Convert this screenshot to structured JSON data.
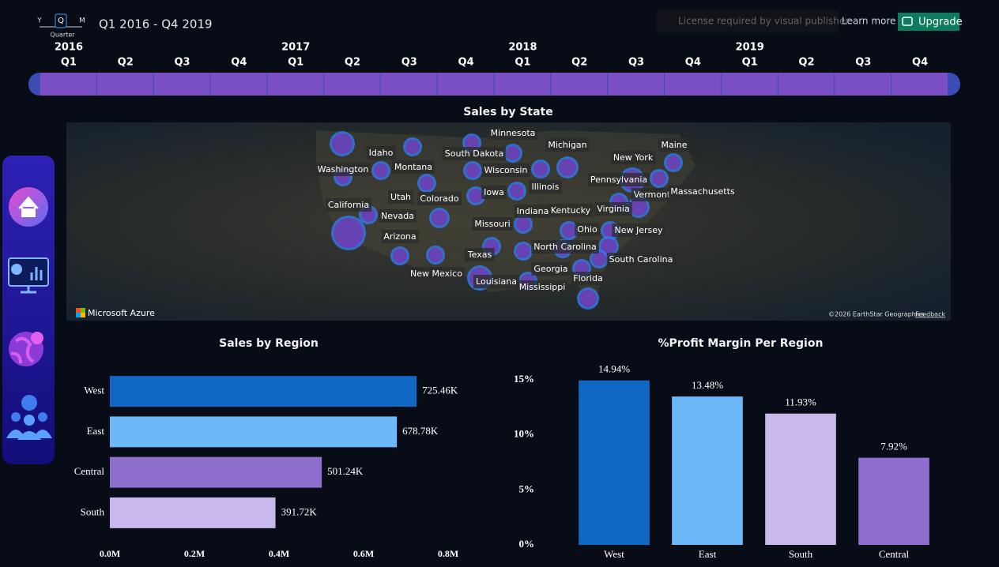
{
  "license": {
    "message": "License required by visual publisher.",
    "link": "Learn more",
    "button": "Upgrade"
  },
  "timeline": {
    "granularity": [
      "Y",
      "Q",
      "M"
    ],
    "granularity_label": "Quarter",
    "range": "Q1 2016 - Q4 2019",
    "years": [
      "2016",
      "2017",
      "2018",
      "2019"
    ],
    "quarters": [
      "Q1",
      "Q2",
      "Q3",
      "Q4",
      "Q1",
      "Q2",
      "Q3",
      "Q4",
      "Q1",
      "Q2",
      "Q3",
      "Q4",
      "Q1",
      "Q2",
      "Q3",
      "Q4"
    ]
  },
  "map": {
    "title": "Sales by State",
    "attribution": "Microsoft Azure",
    "copyright": "©2026 EarthStar Geographics",
    "feedback": "Feedback",
    "labels": [
      "Minnesota",
      "Michigan",
      "Idaho",
      "South Dakota",
      "Maine",
      "New York",
      "Washington",
      "Montana",
      "Wisconsin",
      "Pennsylvania",
      "Illinois",
      "Vermont",
      "Massachusetts",
      "Utah",
      "Iowa",
      "Colorado",
      "California",
      "Nevada",
      "Indiana",
      "Kentucky",
      "Virginia",
      "Missouri",
      "Ohio",
      "New Jersey",
      "Arizona",
      "North Carolina",
      "Texas",
      "South Carolina",
      "New Mexico",
      "Georgia",
      "Florida",
      "Louisiana",
      "Mississippi"
    ]
  },
  "chart_data": [
    {
      "type": "bar",
      "orientation": "horizontal",
      "title": "Sales by Region",
      "categories": [
        "West",
        "East",
        "Central",
        "South"
      ],
      "values": [
        725460,
        678780,
        501240,
        391720
      ],
      "value_labels": [
        "725.46K",
        "678.78K",
        "501.24K",
        "391.72K"
      ],
      "colors": [
        "#1167c4",
        "#6cb8f9",
        "#8e6fcd",
        "#c9b8ec"
      ],
      "xlim": [
        0,
        800000
      ],
      "xticks": [
        {
          "value": 0,
          "label": "0.0M"
        },
        {
          "value": 200000,
          "label": "0.2M"
        },
        {
          "value": 400000,
          "label": "0.4M"
        },
        {
          "value": 600000,
          "label": "0.6M"
        },
        {
          "value": 800000,
          "label": "0.8M"
        }
      ]
    },
    {
      "type": "bar",
      "orientation": "vertical",
      "title": "%Profit Margin Per Region",
      "categories": [
        "West",
        "East",
        "South",
        "Central"
      ],
      "values": [
        14.94,
        13.48,
        11.93,
        7.92
      ],
      "value_labels": [
        "14.94%",
        "13.48%",
        "11.93%",
        "7.92%"
      ],
      "colors": [
        "#1167c4",
        "#6cb8f9",
        "#c9b8ec",
        "#8e6fcd"
      ],
      "ylim": [
        0,
        16.5
      ],
      "yticks": [
        {
          "value": 0,
          "label": "0%"
        },
        {
          "value": 5,
          "label": "5%"
        },
        {
          "value": 10,
          "label": "10%"
        },
        {
          "value": 15,
          "label": "15%"
        }
      ]
    }
  ]
}
